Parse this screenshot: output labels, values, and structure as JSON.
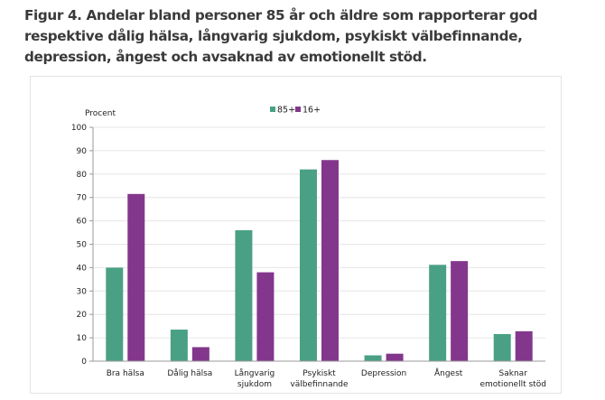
{
  "title": "Figur 4. Andelar bland personer 85 år och äldre som rapporterar god respektive dålig hälsa, långvarig sjukdom, psykiskt välbefinnande, depression, ångest och avsaknad av emotionellt stöd.",
  "chart_data": {
    "type": "bar",
    "title": "Figur 4. Andelar bland personer 85 år och äldre som rapporterar god respektive dålig hälsa, långvarig sjukdom, psykiskt välbefinnande, depression, ångest och avsaknad av emotionellt stöd.",
    "xlabel": "",
    "ylabel": "Procent",
    "ylim": [
      0,
      100
    ],
    "yticks": [
      0,
      10,
      20,
      30,
      40,
      50,
      60,
      70,
      80,
      90,
      100
    ],
    "grid": true,
    "legend_position": "top-center",
    "categories": [
      [
        "Bra hälsa"
      ],
      [
        "Dålig hälsa"
      ],
      [
        "Långvarig",
        "sjukdom"
      ],
      [
        "Psykiskt",
        "välbefinnande"
      ],
      [
        "Depression"
      ],
      [
        "Ångest"
      ],
      [
        "Saknar",
        "emotionellt stöd"
      ]
    ],
    "series": [
      {
        "name": "85+",
        "color": "#4aa085",
        "values": [
          40,
          13.5,
          56,
          82,
          2.5,
          41.2,
          11.6
        ]
      },
      {
        "name": "16+",
        "color": "#83378c",
        "values": [
          71.5,
          6,
          38,
          86,
          3.2,
          42.8,
          12.8
        ]
      }
    ]
  }
}
